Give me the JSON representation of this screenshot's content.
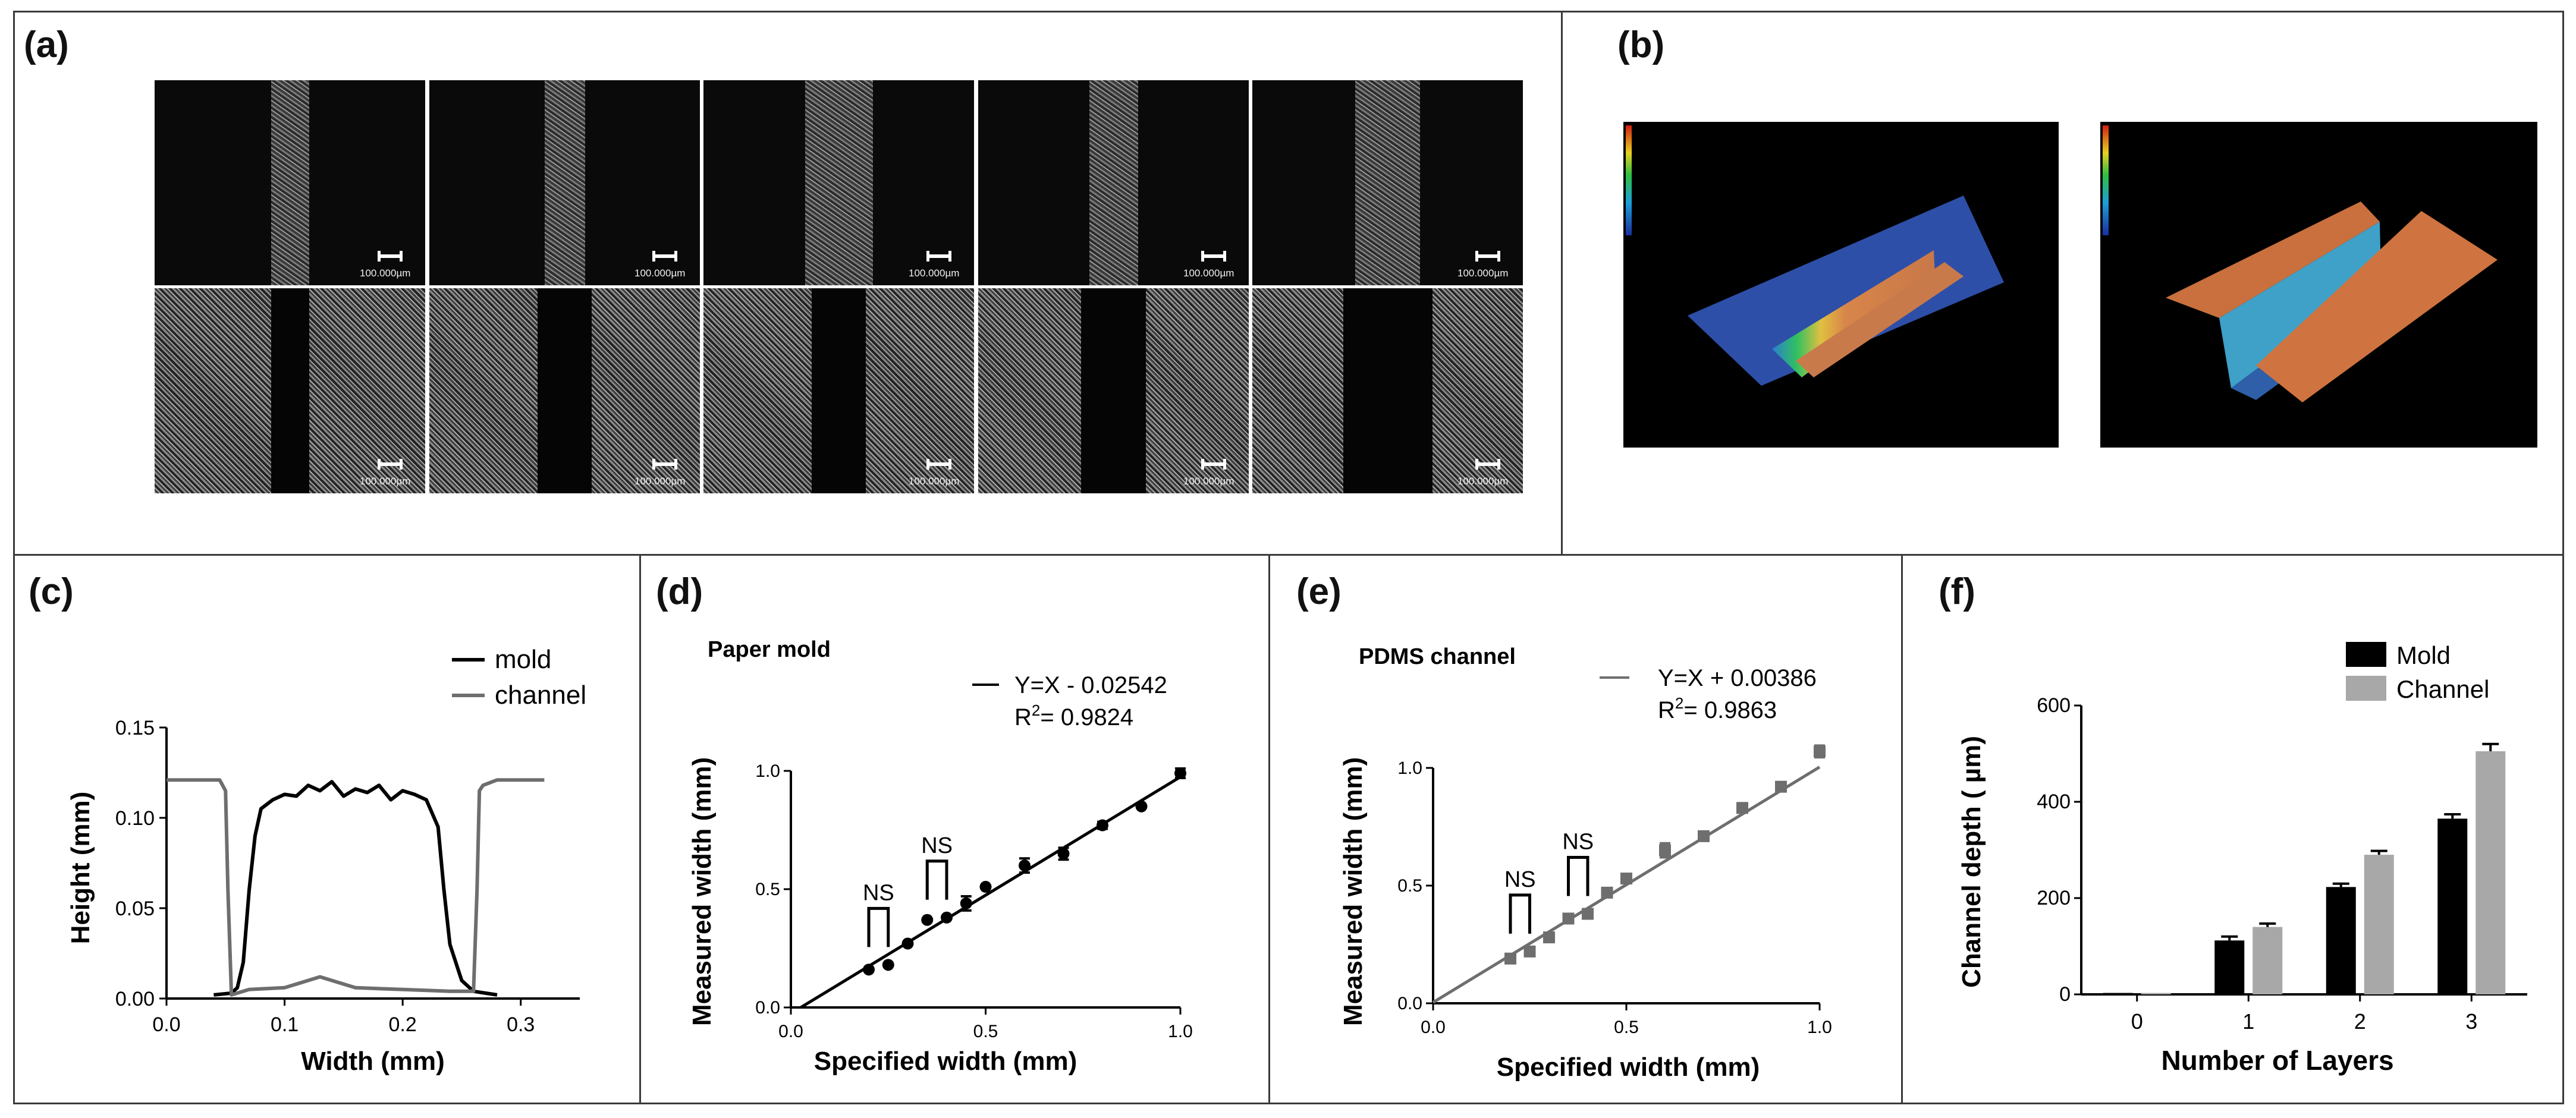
{
  "panels": {
    "a": "(a)",
    "b": "(b)",
    "c": "(c)",
    "d": "(d)",
    "e": "(e)",
    "f": "(f)"
  },
  "micrographs": {
    "scale_text": "100.000µm",
    "top_row_channel_fraction": [
      0.14,
      0.15,
      0.25,
      0.18,
      0.24
    ],
    "bottom_row_channel_fraction": [
      0.14,
      0.2,
      0.2,
      0.24,
      0.33
    ]
  },
  "colors": {
    "mold": "#000000",
    "channel": "#6e6e6e",
    "bar_mold": "#000000",
    "bar_channel": "#a8a8a8",
    "surface_low": "#2c4fae",
    "surface_high": "#d2773e"
  },
  "chart_data": [
    {
      "id": "c",
      "type": "line",
      "xlabel": "Width (mm)",
      "ylabel": "Height (mm)",
      "xlim": [
        0,
        0.35
      ],
      "ylim": [
        0,
        0.15
      ],
      "xticks": [
        "0.0",
        "0.1",
        "0.2",
        "0.3"
      ],
      "yticks": [
        "0.00",
        "0.05",
        "0.10",
        "0.15"
      ],
      "legend_position": "top-right",
      "series": [
        {
          "name": "mold",
          "x": [
            0.0,
            0.04,
            0.055,
            0.06,
            0.065,
            0.07,
            0.075,
            0.08,
            0.09,
            0.1,
            0.11,
            0.12,
            0.13,
            0.14,
            0.15,
            0.16,
            0.17,
            0.18,
            0.19,
            0.2,
            0.21,
            0.22,
            0.23,
            0.235,
            0.24,
            0.25,
            0.26,
            0.27,
            0.28
          ],
          "y": [
            null,
            0.002,
            0.003,
            0.006,
            0.02,
            0.06,
            0.09,
            0.105,
            0.11,
            0.113,
            0.112,
            0.118,
            0.115,
            0.12,
            0.112,
            0.116,
            0.114,
            0.118,
            0.11,
            0.115,
            0.113,
            0.11,
            0.095,
            0.06,
            0.03,
            0.01,
            0.004,
            0.003,
            0.002
          ]
        },
        {
          "name": "channel",
          "x": [
            0.0,
            0.045,
            0.05,
            0.052,
            0.055,
            0.07,
            0.1,
            0.13,
            0.16,
            0.2,
            0.24,
            0.26,
            0.263,
            0.265,
            0.268,
            0.28,
            0.31,
            0.32
          ],
          "y": [
            0.121,
            0.121,
            0.115,
            0.06,
            0.002,
            0.005,
            0.006,
            0.012,
            0.006,
            0.005,
            0.004,
            0.004,
            0.06,
            0.115,
            0.118,
            0.121,
            0.121,
            0.121
          ]
        }
      ]
    },
    {
      "id": "d",
      "type": "scatter",
      "title": "Paper mold",
      "xlabel": "Specified width (mm)",
      "ylabel": "Measured width (mm)",
      "xlim": [
        0,
        1.0
      ],
      "ylim": [
        0,
        1.0
      ],
      "xticks": [
        "0.0",
        "0.5",
        "1.0"
      ],
      "yticks": [
        "0.0",
        "0.5",
        "1.0"
      ],
      "x": [
        0.2,
        0.25,
        0.3,
        0.35,
        0.4,
        0.45,
        0.5,
        0.6,
        0.7,
        0.8,
        0.9,
        1.0
      ],
      "y": [
        0.16,
        0.18,
        0.27,
        0.37,
        0.38,
        0.44,
        0.51,
        0.6,
        0.65,
        0.77,
        0.85,
        0.99
      ],
      "err": [
        0.0,
        0.0,
        0.0,
        0.0,
        0.0,
        0.03,
        0.0,
        0.03,
        0.025,
        0.015,
        0.0,
        0.02
      ],
      "fit_legend": "Y=X - 0.02542",
      "fit_intercept": -0.02542,
      "r2_label": "R",
      "r2_value": "= 0.9824",
      "ns_labels": [
        "NS",
        "NS"
      ],
      "ns_pairs": [
        [
          0.2,
          0.25
        ],
        [
          0.35,
          0.4
        ]
      ]
    },
    {
      "id": "e",
      "type": "scatter",
      "title": "PDMS channel",
      "xlabel": "Specified width (mm)",
      "ylabel": "Measured width (mm)",
      "xlim": [
        0,
        1.0
      ],
      "ylim": [
        0,
        1.0
      ],
      "xticks": [
        "0.0",
        "0.5",
        "1.0"
      ],
      "yticks": [
        "0.0",
        "0.5",
        "1.0"
      ],
      "x": [
        0.2,
        0.25,
        0.3,
        0.35,
        0.4,
        0.45,
        0.5,
        0.6,
        0.7,
        0.8,
        0.9,
        1.0
      ],
      "y": [
        0.19,
        0.22,
        0.28,
        0.36,
        0.38,
        0.47,
        0.53,
        0.65,
        0.71,
        0.83,
        0.92,
        1.07
      ],
      "err": [
        0.0,
        0.0,
        0.0,
        0.0,
        0.0,
        0.015,
        0.0,
        0.03,
        0.0,
        0.0,
        0.0,
        0.025
      ],
      "fit_legend": "Y=X + 0.00386",
      "fit_intercept": 0.00386,
      "r2_label": "R",
      "r2_value": "= 0.9863",
      "ns_labels": [
        "NS",
        "NS"
      ],
      "ns_pairs": [
        [
          0.2,
          0.25
        ],
        [
          0.35,
          0.4
        ]
      ]
    },
    {
      "id": "f",
      "type": "bar",
      "xlabel": "Number of Layers",
      "ylabel": "Channel depth ( µm)",
      "ylim": [
        0,
        600
      ],
      "yticks": [
        "0",
        "200",
        "400",
        "600"
      ],
      "categories": [
        "0",
        "1",
        "2",
        "3"
      ],
      "legend_position": "top-right",
      "series": [
        {
          "name": "Mold",
          "values": [
            3,
            112,
            223,
            365
          ],
          "err": [
            0,
            8,
            7,
            9
          ]
        },
        {
          "name": "Channel",
          "values": [
            3,
            140,
            290,
            505
          ],
          "err": [
            0,
            7,
            8,
            15
          ]
        }
      ]
    }
  ]
}
